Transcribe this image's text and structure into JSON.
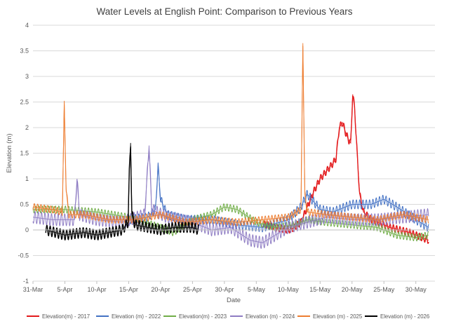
{
  "chart_data": {
    "type": "line",
    "title": "Water Levels at English Point: Comparison to Previous Years",
    "xlabel": "Date",
    "ylabel": "Elevation (m)",
    "ylim": [
      -1,
      4
    ],
    "y_ticks": [
      "-1",
      "-0.5",
      "0",
      "0.5",
      "1",
      "1.5",
      "2",
      "2.5",
      "3",
      "3.5",
      "4"
    ],
    "x_range_days": [
      0,
      63
    ],
    "x_ticks": [
      {
        "day": 0,
        "label": "31-Mar"
      },
      {
        "day": 5,
        "label": "5-Apr"
      },
      {
        "day": 10,
        "label": "10-Apr"
      },
      {
        "day": 15,
        "label": "15-Apr"
      },
      {
        "day": 20,
        "label": "20-Apr"
      },
      {
        "day": 25,
        "label": "25-Apr"
      },
      {
        "day": 30,
        "label": "30-Apr"
      },
      {
        "day": 35,
        "label": "5-May"
      },
      {
        "day": 40,
        "label": "10-May"
      },
      {
        "day": 45,
        "label": "15-May"
      },
      {
        "day": 50,
        "label": "20-May"
      },
      {
        "day": 55,
        "label": "25-May"
      },
      {
        "day": 60,
        "label": "30-May"
      }
    ],
    "grid": true,
    "legend_position": "bottom",
    "series": [
      {
        "name": "Elevation(m) - 2017",
        "color": "#e31a1c",
        "tidal_amplitude": 0.07,
        "points": [
          [
            36,
            0.12
          ],
          [
            38,
            0.05
          ],
          [
            40,
            0.0
          ],
          [
            41,
            0.05
          ],
          [
            42,
            0.15
          ],
          [
            43,
            0.45
          ],
          [
            44,
            0.75
          ],
          [
            45,
            1.0
          ],
          [
            46,
            1.15
          ],
          [
            47,
            1.3
          ],
          [
            47.5,
            1.4
          ],
          [
            48,
            2.0
          ],
          [
            48.5,
            2.1
          ],
          [
            49,
            1.9
          ],
          [
            49.5,
            1.75
          ],
          [
            49.8,
            1.7
          ],
          [
            50.1,
            2.65
          ],
          [
            50.4,
            2.4
          ],
          [
            50.8,
            1.5
          ],
          [
            51.2,
            0.7
          ],
          [
            51.8,
            0.35
          ],
          [
            53,
            0.2
          ],
          [
            56,
            0.05
          ],
          [
            59,
            -0.05
          ],
          [
            62,
            -0.2
          ]
        ]
      },
      {
        "name": "Elevation (m) - 2022",
        "color": "#4472c4",
        "tidal_amplitude": 0.09,
        "points": [
          [
            15,
            0.2
          ],
          [
            18,
            0.25
          ],
          [
            19.2,
            0.4
          ],
          [
            19.6,
            1.25
          ],
          [
            20.0,
            0.6
          ],
          [
            21,
            0.3
          ],
          [
            24,
            0.2
          ],
          [
            28,
            0.2
          ],
          [
            32,
            0.1
          ],
          [
            36,
            0.05
          ],
          [
            40,
            0.2
          ],
          [
            42,
            0.45
          ],
          [
            43,
            0.7
          ],
          [
            44,
            0.55
          ],
          [
            45,
            0.4
          ],
          [
            47,
            0.35
          ],
          [
            50,
            0.5
          ],
          [
            53,
            0.5
          ],
          [
            55,
            0.6
          ],
          [
            57,
            0.45
          ],
          [
            60,
            0.2
          ],
          [
            62,
            0.05
          ]
        ]
      },
      {
        "name": "Elevation(m) - 2023",
        "color": "#70ad47",
        "tidal_amplitude": 0.07,
        "points": [
          [
            0,
            0.4
          ],
          [
            5,
            0.4
          ],
          [
            10,
            0.35
          ],
          [
            15,
            0.25
          ],
          [
            20,
            0.05
          ],
          [
            22,
            -0.05
          ],
          [
            25,
            0.2
          ],
          [
            28,
            0.3
          ],
          [
            30,
            0.45
          ],
          [
            32,
            0.4
          ],
          [
            35,
            0.15
          ],
          [
            38,
            0.05
          ],
          [
            41,
            0.1
          ],
          [
            43,
            0.2
          ],
          [
            46,
            0.15
          ],
          [
            50,
            0.1
          ],
          [
            54,
            0.05
          ],
          [
            57,
            -0.1
          ],
          [
            60,
            -0.15
          ],
          [
            62,
            -0.1
          ]
        ]
      },
      {
        "name": "Elevation (m) - 2024",
        "color": "#8e7cc3",
        "tidal_amplitude": 0.12,
        "points": [
          [
            0,
            0.25
          ],
          [
            3,
            0.2
          ],
          [
            6.5,
            0.2
          ],
          [
            6.9,
            1.0
          ],
          [
            7.3,
            0.3
          ],
          [
            10,
            0.2
          ],
          [
            14,
            0.15
          ],
          [
            17.5,
            0.3
          ],
          [
            18.2,
            1.65
          ],
          [
            18.6,
            0.4
          ],
          [
            21,
            0.25
          ],
          [
            25,
            0.15
          ],
          [
            28,
            0.0
          ],
          [
            31,
            0.05
          ],
          [
            34,
            -0.2
          ],
          [
            36,
            -0.25
          ],
          [
            38,
            -0.1
          ],
          [
            40,
            0.05
          ],
          [
            43,
            0.15
          ],
          [
            46,
            0.25
          ],
          [
            50,
            0.2
          ],
          [
            54,
            0.2
          ],
          [
            58,
            0.25
          ],
          [
            62,
            0.3
          ]
        ]
      },
      {
        "name": "Elevation (m) - 2025",
        "color": "#ed7d31",
        "tidal_amplitude": 0.07,
        "points": [
          [
            0,
            0.45
          ],
          [
            3,
            0.4
          ],
          [
            4.6,
            0.35
          ],
          [
            4.9,
            2.45
          ],
          [
            5.2,
            0.8
          ],
          [
            5.6,
            0.3
          ],
          [
            8,
            0.3
          ],
          [
            12,
            0.2
          ],
          [
            16,
            0.2
          ],
          [
            20,
            0.3
          ],
          [
            24,
            0.15
          ],
          [
            28,
            0.2
          ],
          [
            32,
            0.15
          ],
          [
            36,
            0.2
          ],
          [
            40,
            0.25
          ],
          [
            42,
            0.4
          ],
          [
            42.3,
            3.65
          ],
          [
            42.6,
            0.7
          ],
          [
            43,
            0.35
          ],
          [
            46,
            0.3
          ],
          [
            50,
            0.25
          ],
          [
            54,
            0.2
          ],
          [
            58,
            0.3
          ],
          [
            62,
            0.2
          ]
        ]
      },
      {
        "name": "Elevation (m) - 2026",
        "color": "#000000",
        "tidal_amplitude": 0.1,
        "points": [
          [
            2,
            0.0
          ],
          [
            5,
            -0.1
          ],
          [
            8,
            -0.05
          ],
          [
            10,
            -0.1
          ],
          [
            12,
            -0.05
          ],
          [
            14,
            0.0
          ],
          [
            14.9,
            0.15
          ],
          [
            15.1,
            1.1
          ],
          [
            15.3,
            1.7
          ],
          [
            15.5,
            0.3
          ],
          [
            16,
            0.1
          ],
          [
            18,
            0.05
          ],
          [
            20,
            0.0
          ],
          [
            22,
            0.05
          ],
          [
            25,
            0.05
          ],
          [
            26,
            0.0
          ]
        ]
      }
    ]
  }
}
